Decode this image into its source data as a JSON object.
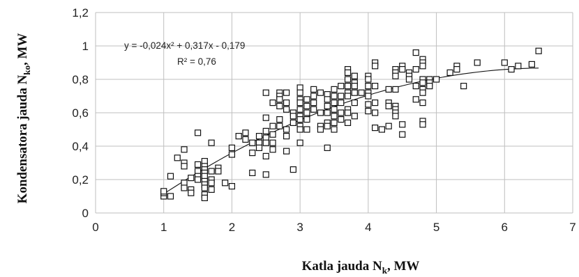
{
  "chart_data": {
    "type": "scatter",
    "xlabel": {
      "main": "Katla jauda N",
      "sub": "k",
      "suffix": ", MW"
    },
    "ylabel": {
      "main": "Kondensatora jauda N",
      "sub": "ko",
      "suffix": ", MW"
    },
    "xlim": [
      0,
      7
    ],
    "ylim": [
      0,
      1.2
    ],
    "x_ticks": [
      "0",
      "1",
      "2",
      "3",
      "4",
      "5",
      "6",
      "7"
    ],
    "y_ticks": [
      "0",
      "0,2",
      "0,4",
      "0,6",
      "0,8",
      "1",
      "1,2"
    ],
    "grid": true,
    "marker": "hollow-square",
    "trendline": {
      "type": "polynomial",
      "coefficients": [
        -0.024,
        0.317,
        -0.179
      ],
      "x_range": [
        1.0,
        6.5
      ],
      "equation": "y = -0,024x² + 0,317x - 0,179",
      "r_squared": "R² = 0,76"
    },
    "points": [
      [
        1.0,
        0.1
      ],
      [
        1.0,
        0.12
      ],
      [
        1.0,
        0.13
      ],
      [
        1.1,
        0.1
      ],
      [
        1.1,
        0.22
      ],
      [
        1.2,
        0.33
      ],
      [
        1.3,
        0.38
      ],
      [
        1.3,
        0.3
      ],
      [
        1.3,
        0.28
      ],
      [
        1.3,
        0.18
      ],
      [
        1.3,
        0.15
      ],
      [
        1.4,
        0.21
      ],
      [
        1.4,
        0.14
      ],
      [
        1.4,
        0.12
      ],
      [
        1.5,
        0.48
      ],
      [
        1.5,
        0.29
      ],
      [
        1.5,
        0.25
      ],
      [
        1.5,
        0.22
      ],
      [
        1.5,
        0.2
      ],
      [
        1.6,
        0.31
      ],
      [
        1.6,
        0.28
      ],
      [
        1.6,
        0.26
      ],
      [
        1.6,
        0.24
      ],
      [
        1.6,
        0.22
      ],
      [
        1.6,
        0.19
      ],
      [
        1.6,
        0.17
      ],
      [
        1.6,
        0.15
      ],
      [
        1.6,
        0.11
      ],
      [
        1.6,
        0.09
      ],
      [
        1.7,
        0.42
      ],
      [
        1.7,
        0.25
      ],
      [
        1.7,
        0.2
      ],
      [
        1.7,
        0.18
      ],
      [
        1.7,
        0.14
      ],
      [
        1.8,
        0.27
      ],
      [
        1.8,
        0.25
      ],
      [
        1.9,
        0.18
      ],
      [
        2.0,
        0.39
      ],
      [
        2.0,
        0.35
      ],
      [
        2.0,
        0.16
      ],
      [
        2.1,
        0.46
      ],
      [
        2.2,
        0.48
      ],
      [
        2.2,
        0.44
      ],
      [
        2.3,
        0.42
      ],
      [
        2.3,
        0.36
      ],
      [
        2.3,
        0.24
      ],
      [
        2.4,
        0.46
      ],
      [
        2.4,
        0.42
      ],
      [
        2.4,
        0.39
      ],
      [
        2.5,
        0.72
      ],
      [
        2.5,
        0.57
      ],
      [
        2.5,
        0.49
      ],
      [
        2.5,
        0.45
      ],
      [
        2.5,
        0.42
      ],
      [
        2.5,
        0.34
      ],
      [
        2.5,
        0.23
      ],
      [
        2.6,
        0.66
      ],
      [
        2.6,
        0.52
      ],
      [
        2.6,
        0.47
      ],
      [
        2.6,
        0.42
      ],
      [
        2.6,
        0.38
      ],
      [
        2.7,
        0.72
      ],
      [
        2.7,
        0.7
      ],
      [
        2.7,
        0.68
      ],
      [
        2.7,
        0.64
      ],
      [
        2.7,
        0.56
      ],
      [
        2.7,
        0.52
      ],
      [
        2.8,
        0.72
      ],
      [
        2.8,
        0.66
      ],
      [
        2.8,
        0.62
      ],
      [
        2.8,
        0.5
      ],
      [
        2.8,
        0.46
      ],
      [
        2.8,
        0.37
      ],
      [
        2.9,
        0.6
      ],
      [
        2.9,
        0.58
      ],
      [
        2.9,
        0.54
      ],
      [
        2.9,
        0.26
      ],
      [
        3.0,
        0.75
      ],
      [
        3.0,
        0.72
      ],
      [
        3.0,
        0.68
      ],
      [
        3.0,
        0.66
      ],
      [
        3.0,
        0.62
      ],
      [
        3.0,
        0.58
      ],
      [
        3.0,
        0.56
      ],
      [
        3.0,
        0.52
      ],
      [
        3.0,
        0.5
      ],
      [
        3.0,
        0.42
      ],
      [
        3.1,
        0.68
      ],
      [
        3.1,
        0.64
      ],
      [
        3.1,
        0.6
      ],
      [
        3.1,
        0.56
      ],
      [
        3.1,
        0.5
      ],
      [
        3.2,
        0.74
      ],
      [
        3.2,
        0.7
      ],
      [
        3.2,
        0.66
      ],
      [
        3.2,
        0.62
      ],
      [
        3.3,
        0.72
      ],
      [
        3.3,
        0.6
      ],
      [
        3.3,
        0.52
      ],
      [
        3.3,
        0.5
      ],
      [
        3.4,
        0.71
      ],
      [
        3.4,
        0.68
      ],
      [
        3.4,
        0.64
      ],
      [
        3.4,
        0.6
      ],
      [
        3.4,
        0.54
      ],
      [
        3.4,
        0.52
      ],
      [
        3.4,
        0.39
      ],
      [
        3.5,
        0.74
      ],
      [
        3.5,
        0.7
      ],
      [
        3.5,
        0.66
      ],
      [
        3.5,
        0.62
      ],
      [
        3.5,
        0.58
      ],
      [
        3.5,
        0.54
      ],
      [
        3.5,
        0.5
      ],
      [
        3.6,
        0.76
      ],
      [
        3.6,
        0.7
      ],
      [
        3.6,
        0.66
      ],
      [
        3.6,
        0.6
      ],
      [
        3.6,
        0.56
      ],
      [
        3.7,
        0.86
      ],
      [
        3.7,
        0.84
      ],
      [
        3.7,
        0.8
      ],
      [
        3.7,
        0.76
      ],
      [
        3.7,
        0.72
      ],
      [
        3.7,
        0.7
      ],
      [
        3.7,
        0.62
      ],
      [
        3.7,
        0.6
      ],
      [
        3.7,
        0.54
      ],
      [
        3.8,
        0.82
      ],
      [
        3.8,
        0.78
      ],
      [
        3.8,
        0.76
      ],
      [
        3.8,
        0.72
      ],
      [
        3.8,
        0.66
      ],
      [
        3.8,
        0.58
      ],
      [
        3.9,
        0.72
      ],
      [
        4.0,
        0.82
      ],
      [
        4.0,
        0.8
      ],
      [
        4.0,
        0.76
      ],
      [
        4.0,
        0.72
      ],
      [
        4.0,
        0.7
      ],
      [
        4.0,
        0.65
      ],
      [
        4.0,
        0.61
      ],
      [
        4.1,
        0.9
      ],
      [
        4.1,
        0.88
      ],
      [
        4.1,
        0.76
      ],
      [
        4.1,
        0.66
      ],
      [
        4.1,
        0.6
      ],
      [
        4.1,
        0.51
      ],
      [
        4.2,
        0.5
      ],
      [
        4.3,
        0.74
      ],
      [
        4.3,
        0.66
      ],
      [
        4.3,
        0.64
      ],
      [
        4.3,
        0.52
      ],
      [
        4.4,
        0.86
      ],
      [
        4.4,
        0.84
      ],
      [
        4.4,
        0.82
      ],
      [
        4.4,
        0.74
      ],
      [
        4.4,
        0.64
      ],
      [
        4.4,
        0.62
      ],
      [
        4.4,
        0.6
      ],
      [
        4.4,
        0.58
      ],
      [
        4.5,
        0.88
      ],
      [
        4.5,
        0.86
      ],
      [
        4.5,
        0.53
      ],
      [
        4.5,
        0.47
      ],
      [
        4.6,
        0.84
      ],
      [
        4.6,
        0.82
      ],
      [
        4.6,
        0.8
      ],
      [
        4.7,
        0.96
      ],
      [
        4.7,
        0.86
      ],
      [
        4.7,
        0.76
      ],
      [
        4.7,
        0.68
      ],
      [
        4.8,
        0.92
      ],
      [
        4.8,
        0.9
      ],
      [
        4.8,
        0.88
      ],
      [
        4.8,
        0.8
      ],
      [
        4.8,
        0.78
      ],
      [
        4.8,
        0.74
      ],
      [
        4.8,
        0.72
      ],
      [
        4.8,
        0.66
      ],
      [
        4.8,
        0.55
      ],
      [
        4.8,
        0.53
      ],
      [
        4.9,
        0.8
      ],
      [
        4.9,
        0.78
      ],
      [
        4.9,
        0.76
      ],
      [
        5.0,
        0.8
      ],
      [
        5.2,
        0.84
      ],
      [
        5.3,
        0.88
      ],
      [
        5.3,
        0.86
      ],
      [
        5.4,
        0.76
      ],
      [
        5.6,
        0.9
      ],
      [
        6.0,
        0.9
      ],
      [
        6.1,
        0.86
      ],
      [
        6.2,
        0.88
      ],
      [
        6.4,
        0.89
      ],
      [
        6.5,
        0.97
      ]
    ]
  }
}
